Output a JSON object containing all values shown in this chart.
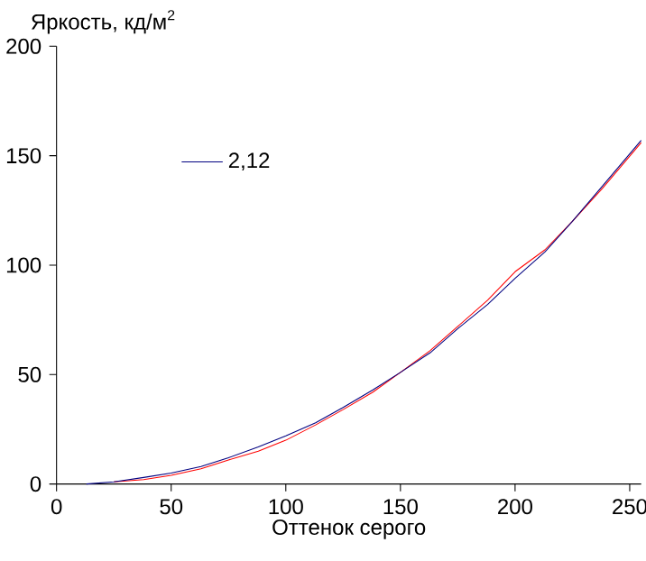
{
  "chart_data": {
    "type": "line",
    "xlabel": "Оттенок серого",
    "ylabel": "Яркость, кд/м$^{2}$",
    "xlim": [
      0,
      255
    ],
    "ylim": [
      0,
      200
    ],
    "xticks": [
      0,
      50,
      100,
      150,
      200,
      250
    ],
    "yticks": [
      0,
      50,
      100,
      150,
      200
    ],
    "grid": false,
    "legend": "top left",
    "marker": "none",
    "line_style": "solid",
    "series": [
      {
        "color": "#ff0000",
        "x": [
          25,
          38,
          50,
          63,
          75,
          88,
          100,
          113,
          125,
          138,
          150,
          163,
          175,
          188,
          200,
          213,
          225,
          238,
          255
        ],
        "values": [
          1,
          2,
          4,
          7,
          11,
          15,
          20,
          27,
          34,
          42,
          51,
          61,
          72,
          84,
          97,
          107,
          120,
          135,
          156
        ]
      },
      {
        "name": "2,12",
        "color": "#000080",
        "x": [
          13,
          25,
          38,
          50,
          63,
          75,
          88,
          100,
          113,
          125,
          138,
          150,
          163,
          175,
          188,
          200,
          213,
          225,
          238,
          255
        ],
        "values": [
          0,
          1,
          3,
          5,
          8,
          12,
          17,
          22,
          28,
          35,
          43,
          51,
          60,
          71,
          82,
          94,
          106,
          120,
          136,
          157
        ]
      }
    ]
  }
}
